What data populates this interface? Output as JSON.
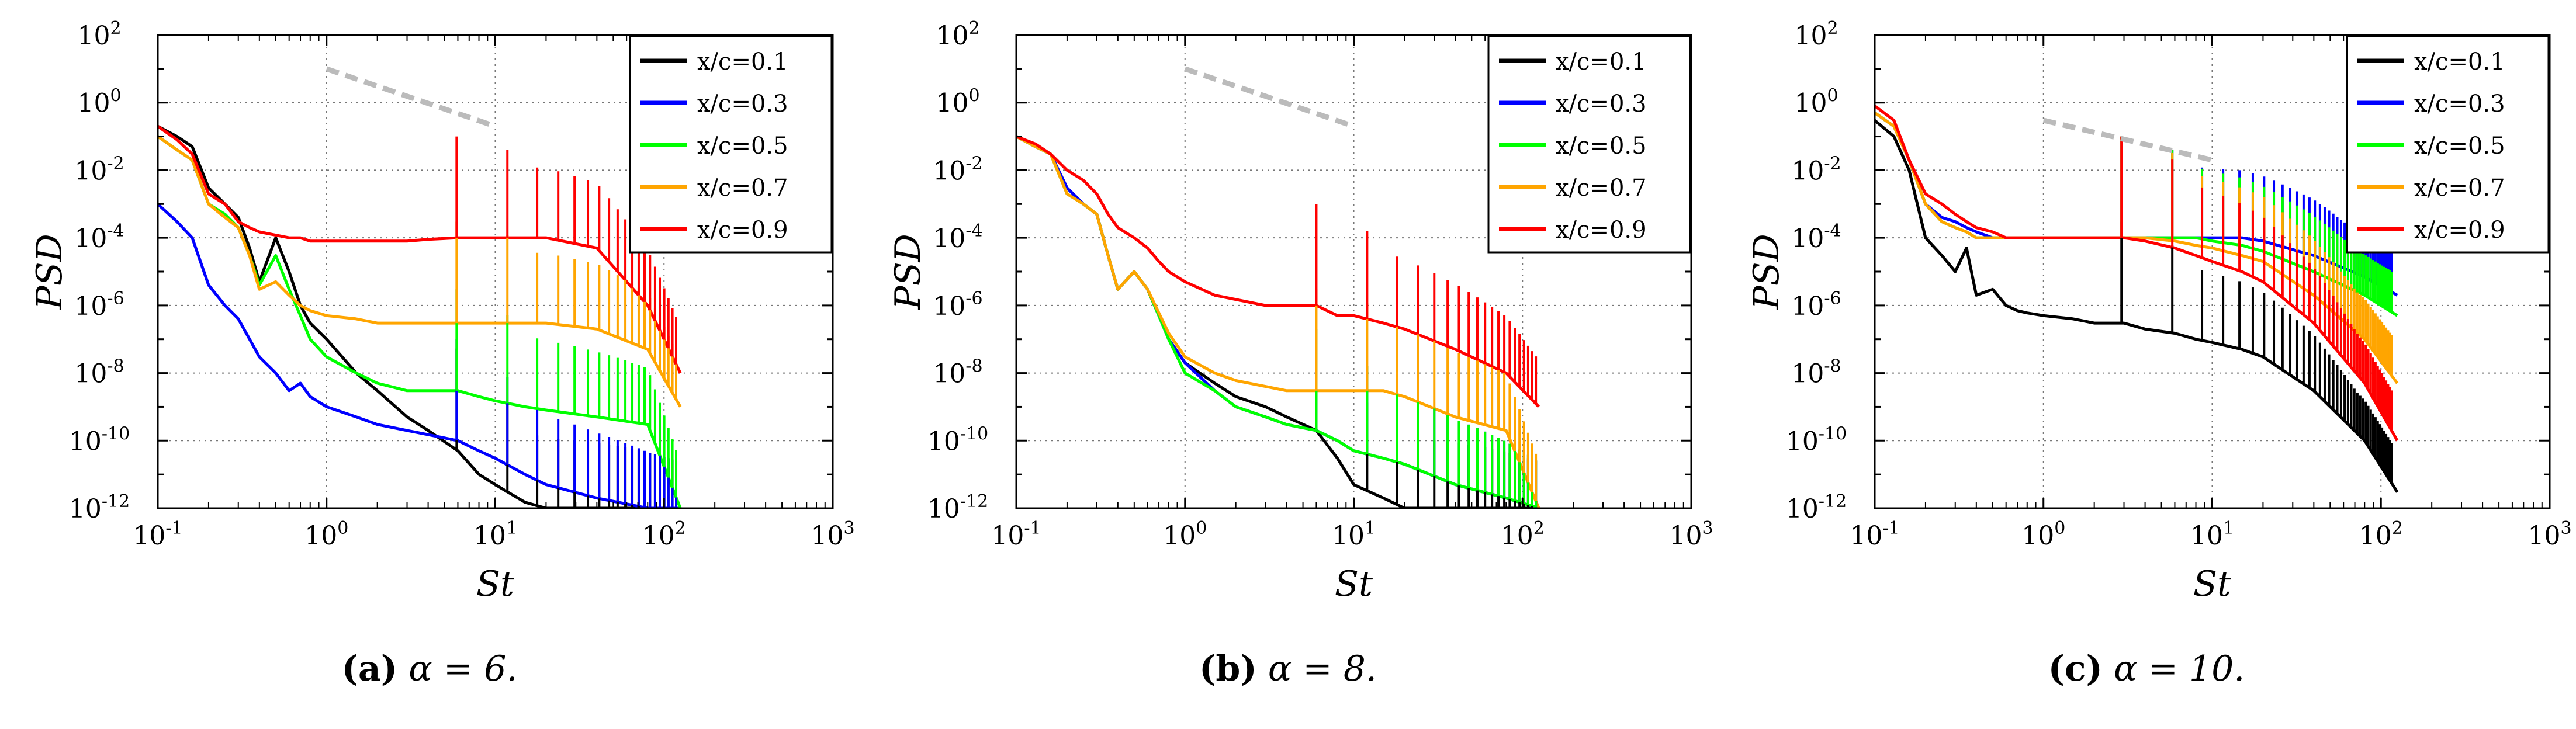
{
  "figure": {
    "panels": [
      {
        "id": "a",
        "caption_letter": "(a)",
        "caption_text": "α = 6."
      },
      {
        "id": "b",
        "caption_letter": "(b)",
        "caption_text": "α = 8."
      },
      {
        "id": "c",
        "caption_letter": "(c)",
        "caption_text": "α = 10."
      }
    ]
  },
  "colors": {
    "x/c=0.1": "#000000",
    "x/c=0.3": "#0000ff",
    "x/c=0.5": "#00ff00",
    "x/c=0.7": "#ffa500",
    "x/c=0.9": "#ff0000",
    "reference_line": "#bbbbbb",
    "grid": "#777777"
  },
  "chart_data": [
    {
      "type": "line",
      "panel": "a",
      "xlabel": "St",
      "ylabel": "PSD",
      "xscale": "log",
      "yscale": "log",
      "xlim": [
        0.1,
        1000
      ],
      "ylim": [
        1e-12,
        100
      ],
      "xticks": [
        "10^-1",
        "10^0",
        "10^1",
        "10^2",
        "10^3"
      ],
      "yticks": [
        "10^-12",
        "10^-10",
        "10^-8",
        "10^-6",
        "10^-4",
        "10^-2",
        "10^0",
        "10^2"
      ],
      "grid": true,
      "legend_position": "top-right",
      "legend": [
        "x/c=0.1",
        "x/c=0.3",
        "x/c=0.5",
        "x/c=0.7",
        "x/c=0.9"
      ],
      "reference_line": {
        "x": [
          1,
          10
        ],
        "y": [
          10,
          0.2
        ]
      },
      "peaks": {
        "fundamental": 5.9,
        "count": 20
      },
      "series": [
        {
          "name": "x/c=0.1",
          "x": [
            0.1,
            0.13,
            0.16,
            0.2,
            0.25,
            0.3,
            0.35,
            0.4,
            0.5,
            0.6,
            0.7,
            0.8,
            1.0,
            1.5,
            2.0,
            3.0,
            4.0,
            6.0,
            8.0,
            10.0,
            15.0,
            20.0,
            40.0,
            80.0,
            125.0
          ],
          "y": [
            0.2,
            0.1,
            0.05,
            0.003,
            0.001,
            0.0004,
            5e-05,
            5e-06,
            0.0001,
            1e-05,
            1e-06,
            3e-07,
            1e-07,
            1e-08,
            3e-09,
            5e-10,
            2e-10,
            5e-11,
            1e-11,
            5e-12,
            1.5e-12,
            1e-12,
            1e-12,
            1e-12,
            1e-12
          ]
        },
        {
          "name": "x/c=0.3",
          "x": [
            0.1,
            0.13,
            0.16,
            0.2,
            0.25,
            0.3,
            0.35,
            0.4,
            0.5,
            0.6,
            0.7,
            0.8,
            1.0,
            1.5,
            2.0,
            3.0,
            4.0,
            6.0,
            8.0,
            10.0,
            15.0,
            20.0,
            40.0,
            80.0,
            125.0
          ],
          "y": [
            0.001,
            0.0003,
            0.0001,
            4e-06,
            1e-06,
            4e-07,
            1e-07,
            3e-08,
            1e-08,
            3e-09,
            5e-09,
            2e-09,
            1e-09,
            5e-10,
            3e-10,
            2e-10,
            1.5e-10,
            1e-10,
            5e-11,
            3e-11,
            1e-11,
            5e-12,
            2e-12,
            1e-12,
            1e-12
          ]
        },
        {
          "name": "x/c=0.5",
          "x": [
            0.1,
            0.13,
            0.16,
            0.2,
            0.25,
            0.3,
            0.35,
            0.4,
            0.5,
            0.6,
            0.7,
            0.8,
            1.0,
            1.5,
            2.0,
            3.0,
            4.0,
            6.0,
            8.0,
            10.0,
            15.0,
            20.0,
            40.0,
            80.0,
            125.0
          ],
          "y": [
            0.1,
            0.04,
            0.02,
            0.001,
            0.0005,
            0.0002,
            3e-05,
            4e-06,
            3e-05,
            3e-06,
            5e-07,
            1e-07,
            3e-08,
            1e-08,
            5e-09,
            3e-09,
            3e-09,
            3e-09,
            2e-09,
            1.5e-09,
            1e-09,
            8e-10,
            5e-10,
            3e-10,
            1e-12
          ]
        },
        {
          "name": "x/c=0.7",
          "x": [
            0.1,
            0.13,
            0.16,
            0.2,
            0.25,
            0.3,
            0.35,
            0.4,
            0.5,
            0.6,
            0.7,
            0.8,
            1.0,
            1.5,
            2.0,
            3.0,
            4.0,
            6.0,
            8.0,
            10.0,
            15.0,
            20.0,
            40.0,
            80.0,
            125.0
          ],
          "y": [
            0.1,
            0.04,
            0.02,
            0.001,
            0.0004,
            0.0002,
            3e-05,
            3e-06,
            5e-06,
            2e-06,
            1e-06,
            7e-07,
            5e-07,
            4e-07,
            3e-07,
            3e-07,
            3e-07,
            3e-07,
            3e-07,
            3e-07,
            3e-07,
            3e-07,
            2e-07,
            5e-08,
            1e-09
          ]
        },
        {
          "name": "x/c=0.9",
          "x": [
            0.1,
            0.13,
            0.16,
            0.2,
            0.25,
            0.3,
            0.35,
            0.4,
            0.5,
            0.6,
            0.7,
            0.8,
            1.0,
            1.5,
            2.0,
            3.0,
            4.0,
            6.0,
            8.0,
            10.0,
            15.0,
            20.0,
            40.0,
            80.0,
            125.0
          ],
          "y": [
            0.2,
            0.08,
            0.03,
            0.002,
            0.001,
            0.0003,
            0.0002,
            0.00015,
            0.00012,
            0.0001,
            0.0001,
            8e-05,
            8e-05,
            8e-05,
            8e-05,
            8e-05,
            9e-05,
            0.0001,
            0.0001,
            0.0001,
            0.0001,
            0.0001,
            5e-05,
            1e-06,
            1e-08
          ]
        }
      ]
    },
    {
      "type": "line",
      "panel": "b",
      "xlabel": "St",
      "ylabel": "PSD",
      "xscale": "log",
      "yscale": "log",
      "xlim": [
        0.1,
        1000
      ],
      "ylim": [
        1e-12,
        100
      ],
      "xticks": [
        "10^-1",
        "10^0",
        "10^1",
        "10^2",
        "10^3"
      ],
      "yticks": [
        "10^-12",
        "10^-10",
        "10^-8",
        "10^-6",
        "10^-4",
        "10^-2",
        "10^0",
        "10^2"
      ],
      "grid": true,
      "legend_position": "top-right",
      "legend": [
        "x/c=0.1",
        "x/c=0.3",
        "x/c=0.5",
        "x/c=0.7",
        "x/c=0.9"
      ],
      "reference_line": {
        "x": [
          1,
          10
        ],
        "y": [
          10,
          0.2
        ]
      },
      "peaks": {
        "fundamental": 6.0,
        "count": 20
      },
      "series": [
        {
          "name": "x/c=0.1",
          "x": [
            0.1,
            0.13,
            0.16,
            0.2,
            0.25,
            0.3,
            0.35,
            0.4,
            0.5,
            0.6,
            0.7,
            0.8,
            1.0,
            1.5,
            2.0,
            3.0,
            4.0,
            6.0,
            8.0,
            10.0,
            15.0,
            20.0,
            40.0,
            80.0,
            125.0
          ],
          "y": [
            0.1,
            0.05,
            0.03,
            0.003,
            0.001,
            0.0005,
            3e-05,
            3e-06,
            1e-05,
            3e-06,
            5e-07,
            1e-07,
            2e-08,
            5e-09,
            2e-09,
            1e-09,
            5e-10,
            2e-10,
            3e-11,
            5e-12,
            2e-12,
            1e-12,
            1e-12,
            1e-12,
            1e-12
          ]
        },
        {
          "name": "x/c=0.3",
          "x": [
            0.1,
            0.13,
            0.16,
            0.2,
            0.25,
            0.3,
            0.35,
            0.4,
            0.5,
            0.6,
            0.7,
            0.8,
            1.0,
            1.5,
            2.0,
            3.0,
            4.0,
            6.0,
            8.0,
            10.0,
            15.0,
            20.0,
            40.0,
            80.0,
            125.0
          ],
          "y": [
            0.1,
            0.05,
            0.03,
            0.003,
            0.001,
            0.0005,
            3e-05,
            3e-06,
            1e-05,
            3e-06,
            5e-07,
            1e-07,
            2e-08,
            3e-09,
            1e-09,
            5e-10,
            3e-10,
            2e-10,
            1e-10,
            5e-11,
            3e-11,
            2e-11,
            5e-12,
            2e-12,
            1e-12
          ]
        },
        {
          "name": "x/c=0.5",
          "x": [
            0.1,
            0.13,
            0.16,
            0.2,
            0.25,
            0.3,
            0.35,
            0.4,
            0.5,
            0.6,
            0.7,
            0.8,
            1.0,
            1.5,
            2.0,
            3.0,
            4.0,
            6.0,
            8.0,
            10.0,
            15.0,
            20.0,
            40.0,
            80.0,
            125.0
          ],
          "y": [
            0.1,
            0.05,
            0.03,
            0.002,
            0.001,
            0.0005,
            3e-05,
            3e-06,
            1e-05,
            3e-06,
            5e-07,
            1e-07,
            1e-08,
            3e-09,
            1e-09,
            5e-10,
            3e-10,
            2e-10,
            1e-10,
            5e-11,
            3e-11,
            2e-11,
            5e-12,
            2e-12,
            1e-12
          ]
        },
        {
          "name": "x/c=0.7",
          "x": [
            0.1,
            0.13,
            0.16,
            0.2,
            0.25,
            0.3,
            0.35,
            0.4,
            0.5,
            0.6,
            0.7,
            0.8,
            1.0,
            1.5,
            2.0,
            3.0,
            4.0,
            6.0,
            8.0,
            10.0,
            15.0,
            20.0,
            40.0,
            80.0,
            125.0
          ],
          "y": [
            0.1,
            0.05,
            0.03,
            0.002,
            0.001,
            0.0005,
            3e-05,
            3e-06,
            1e-05,
            3e-06,
            6e-07,
            1.5e-07,
            3e-08,
            1e-08,
            6e-09,
            4e-09,
            3e-09,
            3e-09,
            3e-09,
            3e-09,
            3e-09,
            2e-09,
            5e-10,
            2e-10,
            1e-12
          ]
        },
        {
          "name": "x/c=0.9",
          "x": [
            0.1,
            0.13,
            0.16,
            0.2,
            0.25,
            0.3,
            0.35,
            0.4,
            0.5,
            0.6,
            0.7,
            0.8,
            1.0,
            1.5,
            2.0,
            3.0,
            4.0,
            6.0,
            8.0,
            10.0,
            15.0,
            20.0,
            40.0,
            80.0,
            125.0
          ],
          "y": [
            0.1,
            0.06,
            0.03,
            0.01,
            0.005,
            0.002,
            0.0005,
            0.0002,
            0.0001,
            5e-05,
            2e-05,
            1e-05,
            5e-06,
            2e-06,
            1.5e-06,
            1e-06,
            1e-06,
            1e-06,
            5e-07,
            5e-07,
            3e-07,
            2e-07,
            5e-08,
            1e-08,
            1e-09
          ]
        }
      ]
    },
    {
      "type": "line",
      "panel": "c",
      "xlabel": "St",
      "ylabel": "PSD",
      "xscale": "log",
      "yscale": "log",
      "xlim": [
        0.1,
        1000
      ],
      "ylim": [
        1e-12,
        100
      ],
      "xticks": [
        "10^-1",
        "10^0",
        "10^1",
        "10^2",
        "10^3"
      ],
      "yticks": [
        "10^-12",
        "10^-10",
        "10^-8",
        "10^-6",
        "10^-4",
        "10^-2",
        "10^0",
        "10^2"
      ],
      "grid": true,
      "legend_position": "top-right",
      "legend": [
        "x/c=0.1",
        "x/c=0.3",
        "x/c=0.5",
        "x/c=0.7",
        "x/c=0.9"
      ],
      "reference_line": {
        "x": [
          1,
          10
        ],
        "y": [
          0.3,
          0.02
        ]
      },
      "peaks": {
        "fundamental": 2.9,
        "count": 40
      },
      "series": [
        {
          "name": "x/c=0.1",
          "x": [
            0.1,
            0.13,
            0.16,
            0.2,
            0.25,
            0.3,
            0.35,
            0.4,
            0.5,
            0.6,
            0.7,
            0.8,
            1.0,
            1.5,
            2.0,
            3.0,
            4.0,
            6.0,
            8.0,
            10.0,
            15.0,
            20.0,
            40.0,
            80.0,
            125.0
          ],
          "y": [
            0.3,
            0.1,
            0.01,
            0.0001,
            3e-05,
            1e-05,
            5e-05,
            2e-06,
            3e-06,
            1e-06,
            7e-07,
            6e-07,
            5e-07,
            4e-07,
            3e-07,
            3e-07,
            2e-07,
            1.5e-07,
            1e-07,
            8e-08,
            5e-08,
            3e-08,
            3e-09,
            1e-10,
            3e-12
          ]
        },
        {
          "name": "x/c=0.3",
          "x": [
            0.1,
            0.13,
            0.16,
            0.2,
            0.25,
            0.3,
            0.35,
            0.4,
            0.5,
            0.6,
            0.7,
            0.8,
            1.0,
            1.5,
            2.0,
            3.0,
            4.0,
            6.0,
            8.0,
            10.0,
            15.0,
            20.0,
            40.0,
            80.0,
            125.0
          ],
          "y": [
            0.5,
            0.2,
            0.02,
            0.001,
            0.0004,
            0.0003,
            0.0002,
            0.00015,
            0.0001,
            0.0001,
            0.0001,
            0.0001,
            0.0001,
            0.0001,
            0.0001,
            0.0001,
            0.0001,
            0.0001,
            0.0001,
            0.0001,
            0.0001,
            8e-05,
            3e-05,
            7e-06,
            2e-06
          ]
        },
        {
          "name": "x/c=0.5",
          "x": [
            0.1,
            0.13,
            0.16,
            0.2,
            0.25,
            0.3,
            0.35,
            0.4,
            0.5,
            0.6,
            0.7,
            0.8,
            1.0,
            1.5,
            2.0,
            3.0,
            4.0,
            6.0,
            8.0,
            10.0,
            15.0,
            20.0,
            40.0,
            80.0,
            125.0
          ],
          "y": [
            0.5,
            0.2,
            0.02,
            0.001,
            0.0003,
            0.0002,
            0.00015,
            0.0001,
            0.0001,
            0.0001,
            0.0001,
            0.0001,
            0.0001,
            0.0001,
            0.0001,
            0.0001,
            0.0001,
            0.0001,
            0.0001,
            8e-05,
            6e-05,
            4e-05,
            1e-05,
            2e-06,
            5e-07
          ]
        },
        {
          "name": "x/c=0.7",
          "x": [
            0.1,
            0.13,
            0.16,
            0.2,
            0.25,
            0.3,
            0.35,
            0.4,
            0.5,
            0.6,
            0.7,
            0.8,
            1.0,
            1.5,
            2.0,
            3.0,
            4.0,
            6.0,
            8.0,
            10.0,
            15.0,
            20.0,
            40.0,
            80.0,
            125.0
          ],
          "y": [
            0.5,
            0.2,
            0.02,
            0.001,
            0.0003,
            0.0002,
            0.00015,
            0.0001,
            0.0001,
            0.0001,
            0.0001,
            0.0001,
            0.0001,
            0.0001,
            0.0001,
            0.0001,
            0.0001,
            8e-05,
            6e-05,
            5e-05,
            3e-05,
            2e-05,
            2e-06,
            1e-07,
            5e-09
          ]
        },
        {
          "name": "x/c=0.9",
          "x": [
            0.1,
            0.13,
            0.16,
            0.2,
            0.25,
            0.3,
            0.35,
            0.4,
            0.5,
            0.6,
            0.7,
            0.8,
            1.0,
            1.5,
            2.0,
            3.0,
            4.0,
            6.0,
            8.0,
            10.0,
            15.0,
            20.0,
            40.0,
            80.0,
            125.0
          ],
          "y": [
            0.8,
            0.3,
            0.02,
            0.002,
            0.001,
            0.0005,
            0.0003,
            0.0002,
            0.00015,
            0.0001,
            0.0001,
            0.0001,
            0.0001,
            0.0001,
            0.0001,
            0.0001,
            8e-05,
            5e-05,
            3e-05,
            2e-05,
            1e-05,
            5e-06,
            3e-07,
            5e-09,
            1e-10
          ]
        }
      ]
    }
  ]
}
